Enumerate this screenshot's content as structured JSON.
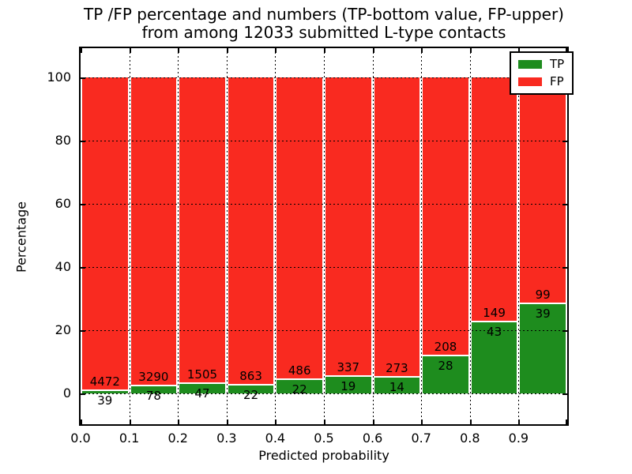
{
  "title": {
    "line1": "TP /FP percentage and numbers (TP-bottom value, FP-upper)",
    "line2": "from among 12033 submitted L-type contacts"
  },
  "chart_data": {
    "type": "bar",
    "stacked": true,
    "normalized": "each bin scaled to 100%",
    "total_contacts": 12033,
    "bins": [
      "0.0-0.1",
      "0.1-0.2",
      "0.2-0.3",
      "0.3-0.4",
      "0.4-0.5",
      "0.5-0.6",
      "0.6-0.7",
      "0.7-0.8",
      "0.8-0.9",
      "0.9-1.0"
    ],
    "series": [
      {
        "name": "TP",
        "color": "#1e8c1e",
        "counts": [
          39,
          78,
          47,
          22,
          22,
          19,
          14,
          28,
          43,
          39
        ]
      },
      {
        "name": "FP",
        "color": "#f92a20",
        "counts": [
          4472,
          3290,
          1505,
          863,
          486,
          337,
          273,
          208,
          149,
          99
        ]
      }
    ],
    "xlabel": "Predicted probability",
    "ylabel": "Percentage",
    "xticks": [
      "0.0",
      "0.1",
      "0.2",
      "0.3",
      "0.4",
      "0.5",
      "0.6",
      "0.7",
      "0.8",
      "0.9"
    ],
    "yticks": [
      0,
      20,
      40,
      60,
      80,
      100
    ],
    "xlim": [
      0.0,
      1.0
    ],
    "ylim": [
      -10,
      110
    ],
    "grid": "dotted, drawn above bars",
    "legend_position": "upper right",
    "bar_label_note": "TP count below segment top, FP count above segment top"
  }
}
